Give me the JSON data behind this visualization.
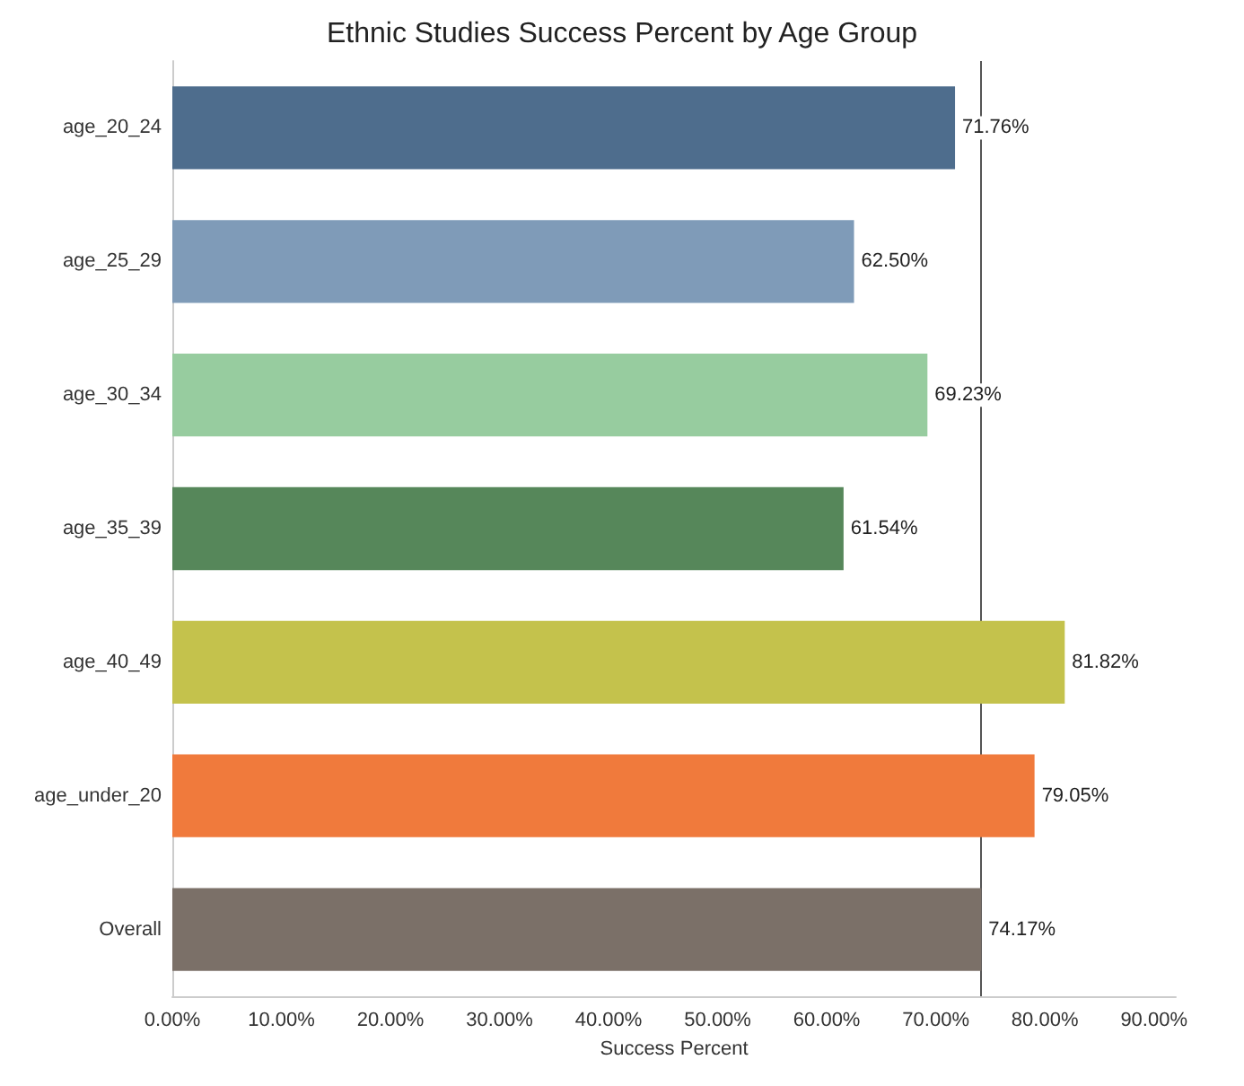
{
  "chart_data": {
    "type": "bar",
    "orientation": "horizontal",
    "title": "Ethnic Studies Success Percent by Age Group",
    "xlabel": "Success Percent",
    "categories": [
      "age_20_24",
      "age_25_29",
      "age_30_34",
      "age_35_39",
      "age_40_49",
      "age_under_20",
      "Overall"
    ],
    "values": [
      71.76,
      62.5,
      69.23,
      61.54,
      81.82,
      79.05,
      74.17
    ],
    "colors": [
      "#4e6d8d",
      "#7f9bb8",
      "#97cc9f",
      "#56875a",
      "#c4c24c",
      "#f07a3c",
      "#7b7068"
    ],
    "value_labels": [
      "71.76%",
      "62.50%",
      "69.23%",
      "61.54%",
      "81.82%",
      "79.05%",
      "74.17%"
    ],
    "xlim": [
      0,
      92
    ],
    "xticks": [
      {
        "value": 0,
        "label": "0.00%"
      },
      {
        "value": 10,
        "label": "10.00%"
      },
      {
        "value": 20,
        "label": "20.00%"
      },
      {
        "value": 30,
        "label": "30.00%"
      },
      {
        "value": 40,
        "label": "40.00%"
      },
      {
        "value": 50,
        "label": "50.00%"
      },
      {
        "value": 60,
        "label": "60.00%"
      },
      {
        "value": 70,
        "label": "70.00%"
      },
      {
        "value": 80,
        "label": "80.00%"
      },
      {
        "value": 90,
        "label": "90.00%"
      }
    ],
    "ref_lines": [
      {
        "axis": "x",
        "value": 74.17,
        "color": "#555555"
      }
    ],
    "grid": false
  }
}
